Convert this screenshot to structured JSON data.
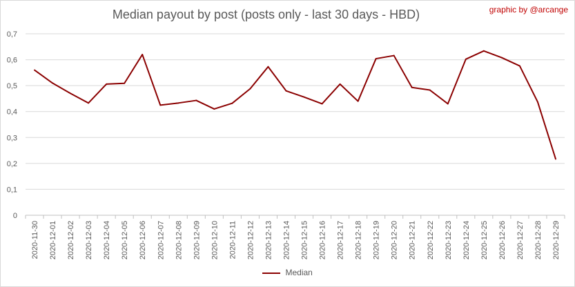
{
  "credit": "graphic by @arcange",
  "chart_data": {
    "type": "line",
    "title": "Median payout by post (posts only - last 30 days - HBD)",
    "xlabel": "",
    "ylabel": "",
    "ylim": [
      0,
      0.7
    ],
    "yticks": [
      "0",
      "0,1",
      "0,2",
      "0,3",
      "0,4",
      "0,5",
      "0,6",
      "0,7"
    ],
    "grid": true,
    "legend": "bottom",
    "color": "#8b0000",
    "categories": [
      "2020-11-30",
      "2020-12-01",
      "2020-12-02",
      "2020-12-03",
      "2020-12-04",
      "2020-12-05",
      "2020-12-06",
      "2020-12-07",
      "2020-12-08",
      "2020-12-09",
      "2020-12-10",
      "2020-12-11",
      "2020-12-12",
      "2020-12-13",
      "2020-12-14",
      "2020-12-15",
      "2020-12-16",
      "2020-12-17",
      "2020-12-18",
      "2020-12-19",
      "2020-12-20",
      "2020-12-21",
      "2020-12-22",
      "2020-12-23",
      "2020-12-24",
      "2020-12-25",
      "2020-12-26",
      "2020-12-27",
      "2020-12-28",
      "2020-12-29"
    ],
    "series": [
      {
        "name": "Median",
        "values": [
          0.56,
          0.51,
          0.47,
          0.433,
          0.506,
          0.509,
          0.62,
          0.425,
          0.433,
          0.443,
          0.41,
          0.432,
          0.488,
          0.573,
          0.48,
          0.456,
          0.43,
          0.506,
          0.44,
          0.604,
          0.616,
          0.493,
          0.483,
          0.43,
          0.602,
          0.634,
          0.608,
          0.576,
          0.437,
          0.217
        ]
      }
    ]
  }
}
